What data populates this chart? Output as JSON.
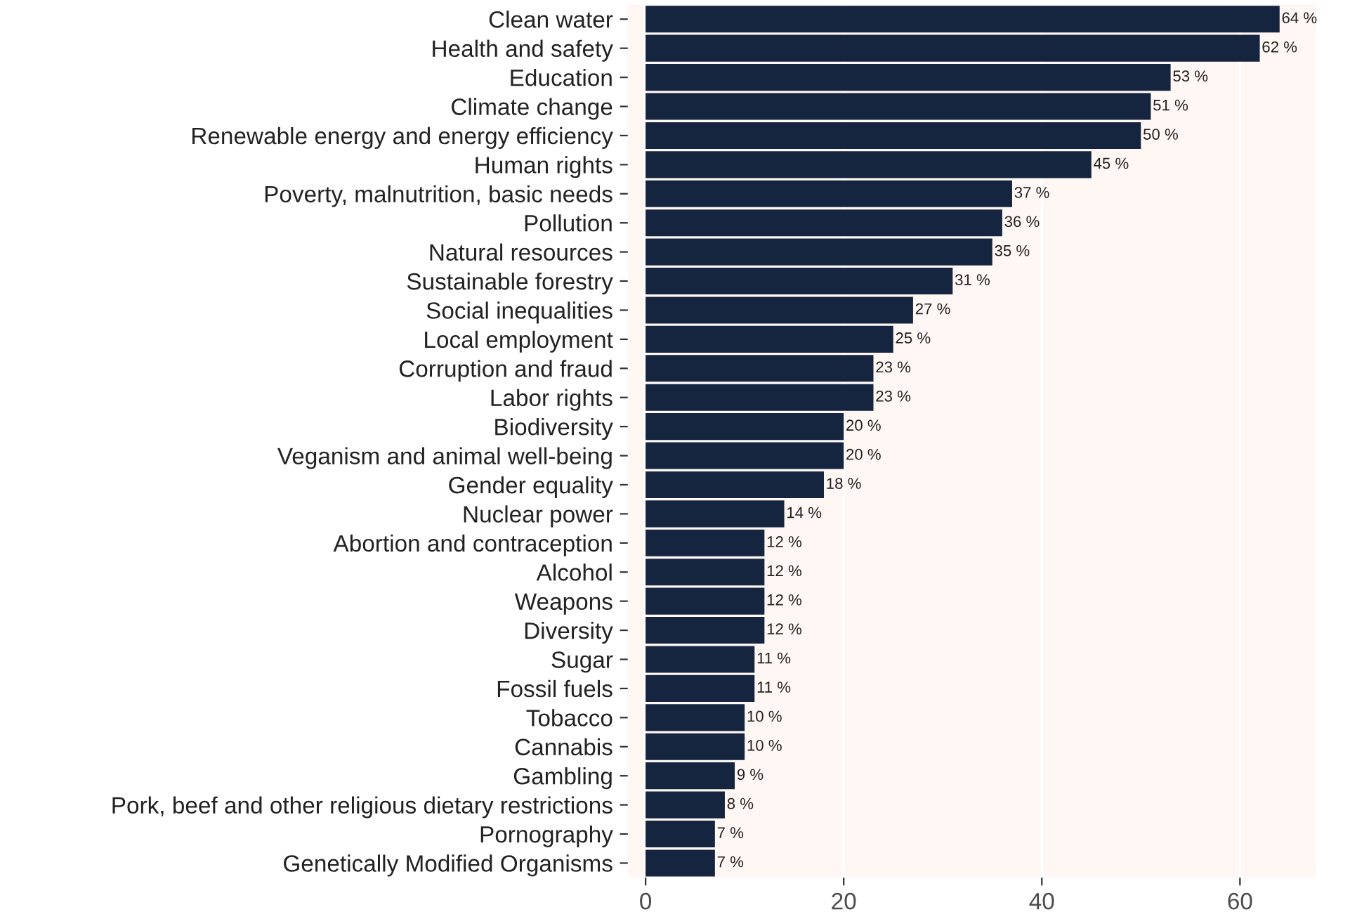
{
  "chart_data": {
    "type": "bar",
    "orientation": "horizontal",
    "categories": [
      "Clean water",
      "Health and safety",
      "Education",
      "Climate change",
      "Renewable energy and energy efficiency",
      "Human rights",
      "Poverty, malnutrition, basic needs",
      "Pollution",
      "Natural resources",
      "Sustainable forestry",
      "Social inequalities",
      "Local employment",
      "Corruption and fraud",
      "Labor rights",
      "Biodiversity",
      "Veganism and animal well-being",
      "Gender equality",
      "Nuclear power",
      "Abortion and contraception",
      "Alcohol",
      "Weapons",
      "Diversity",
      "Sugar",
      "Fossil fuels",
      "Tobacco",
      "Cannabis",
      "Gambling",
      "Pork, beef and other religious dietary restrictions",
      "Pornography",
      "Genetically Modified Organisms"
    ],
    "values": [
      64,
      62,
      53,
      51,
      50,
      45,
      37,
      36,
      35,
      31,
      27,
      25,
      23,
      23,
      20,
      20,
      18,
      14,
      12,
      12,
      12,
      12,
      11,
      11,
      10,
      10,
      9,
      8,
      7,
      7
    ],
    "value_labels": [
      "64 %",
      "62 %",
      "53 %",
      "51 %",
      "50 %",
      "45 %",
      "37 %",
      "36 %",
      "35 %",
      "31 %",
      "27 %",
      "25 %",
      "23 %",
      "23 %",
      "20 %",
      "20 %",
      "18 %",
      "14 %",
      "12 %",
      "12 %",
      "12 %",
      "12 %",
      "11 %",
      "11 %",
      "10 %",
      "10 %",
      "9 %",
      "8 %",
      "7 %",
      "7 %"
    ],
    "color": "#15243f",
    "xlim": [
      -1.8,
      67.7
    ],
    "xticks": [
      0,
      20,
      40,
      60
    ],
    "grid": "x",
    "legend": false
  }
}
